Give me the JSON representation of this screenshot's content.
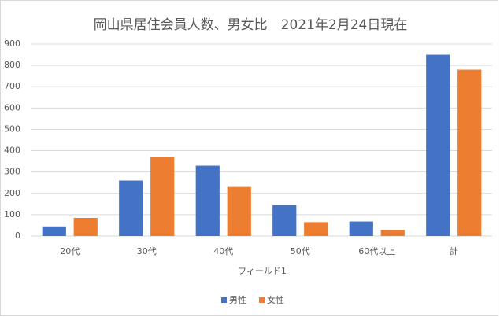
{
  "chart_data": {
    "type": "bar",
    "title": "岡山県居住会員人数、男女比　2021年2月24日現在",
    "x_label": "フィールド1",
    "categories": [
      "20代",
      "30代",
      "40代",
      "50代",
      "60代以上",
      "計"
    ],
    "series": [
      {
        "name": "男性",
        "color": "#4472c4",
        "values": [
          45,
          260,
          330,
          145,
          68,
          850
        ]
      },
      {
        "name": "女性",
        "color": "#ed7d31",
        "values": [
          85,
          370,
          230,
          65,
          28,
          780
        ]
      }
    ],
    "ylim": [
      0,
      900
    ],
    "yticks": [
      0,
      100,
      200,
      300,
      400,
      500,
      600,
      700,
      800,
      900
    ],
    "grid": true,
    "legend": "bottom"
  }
}
